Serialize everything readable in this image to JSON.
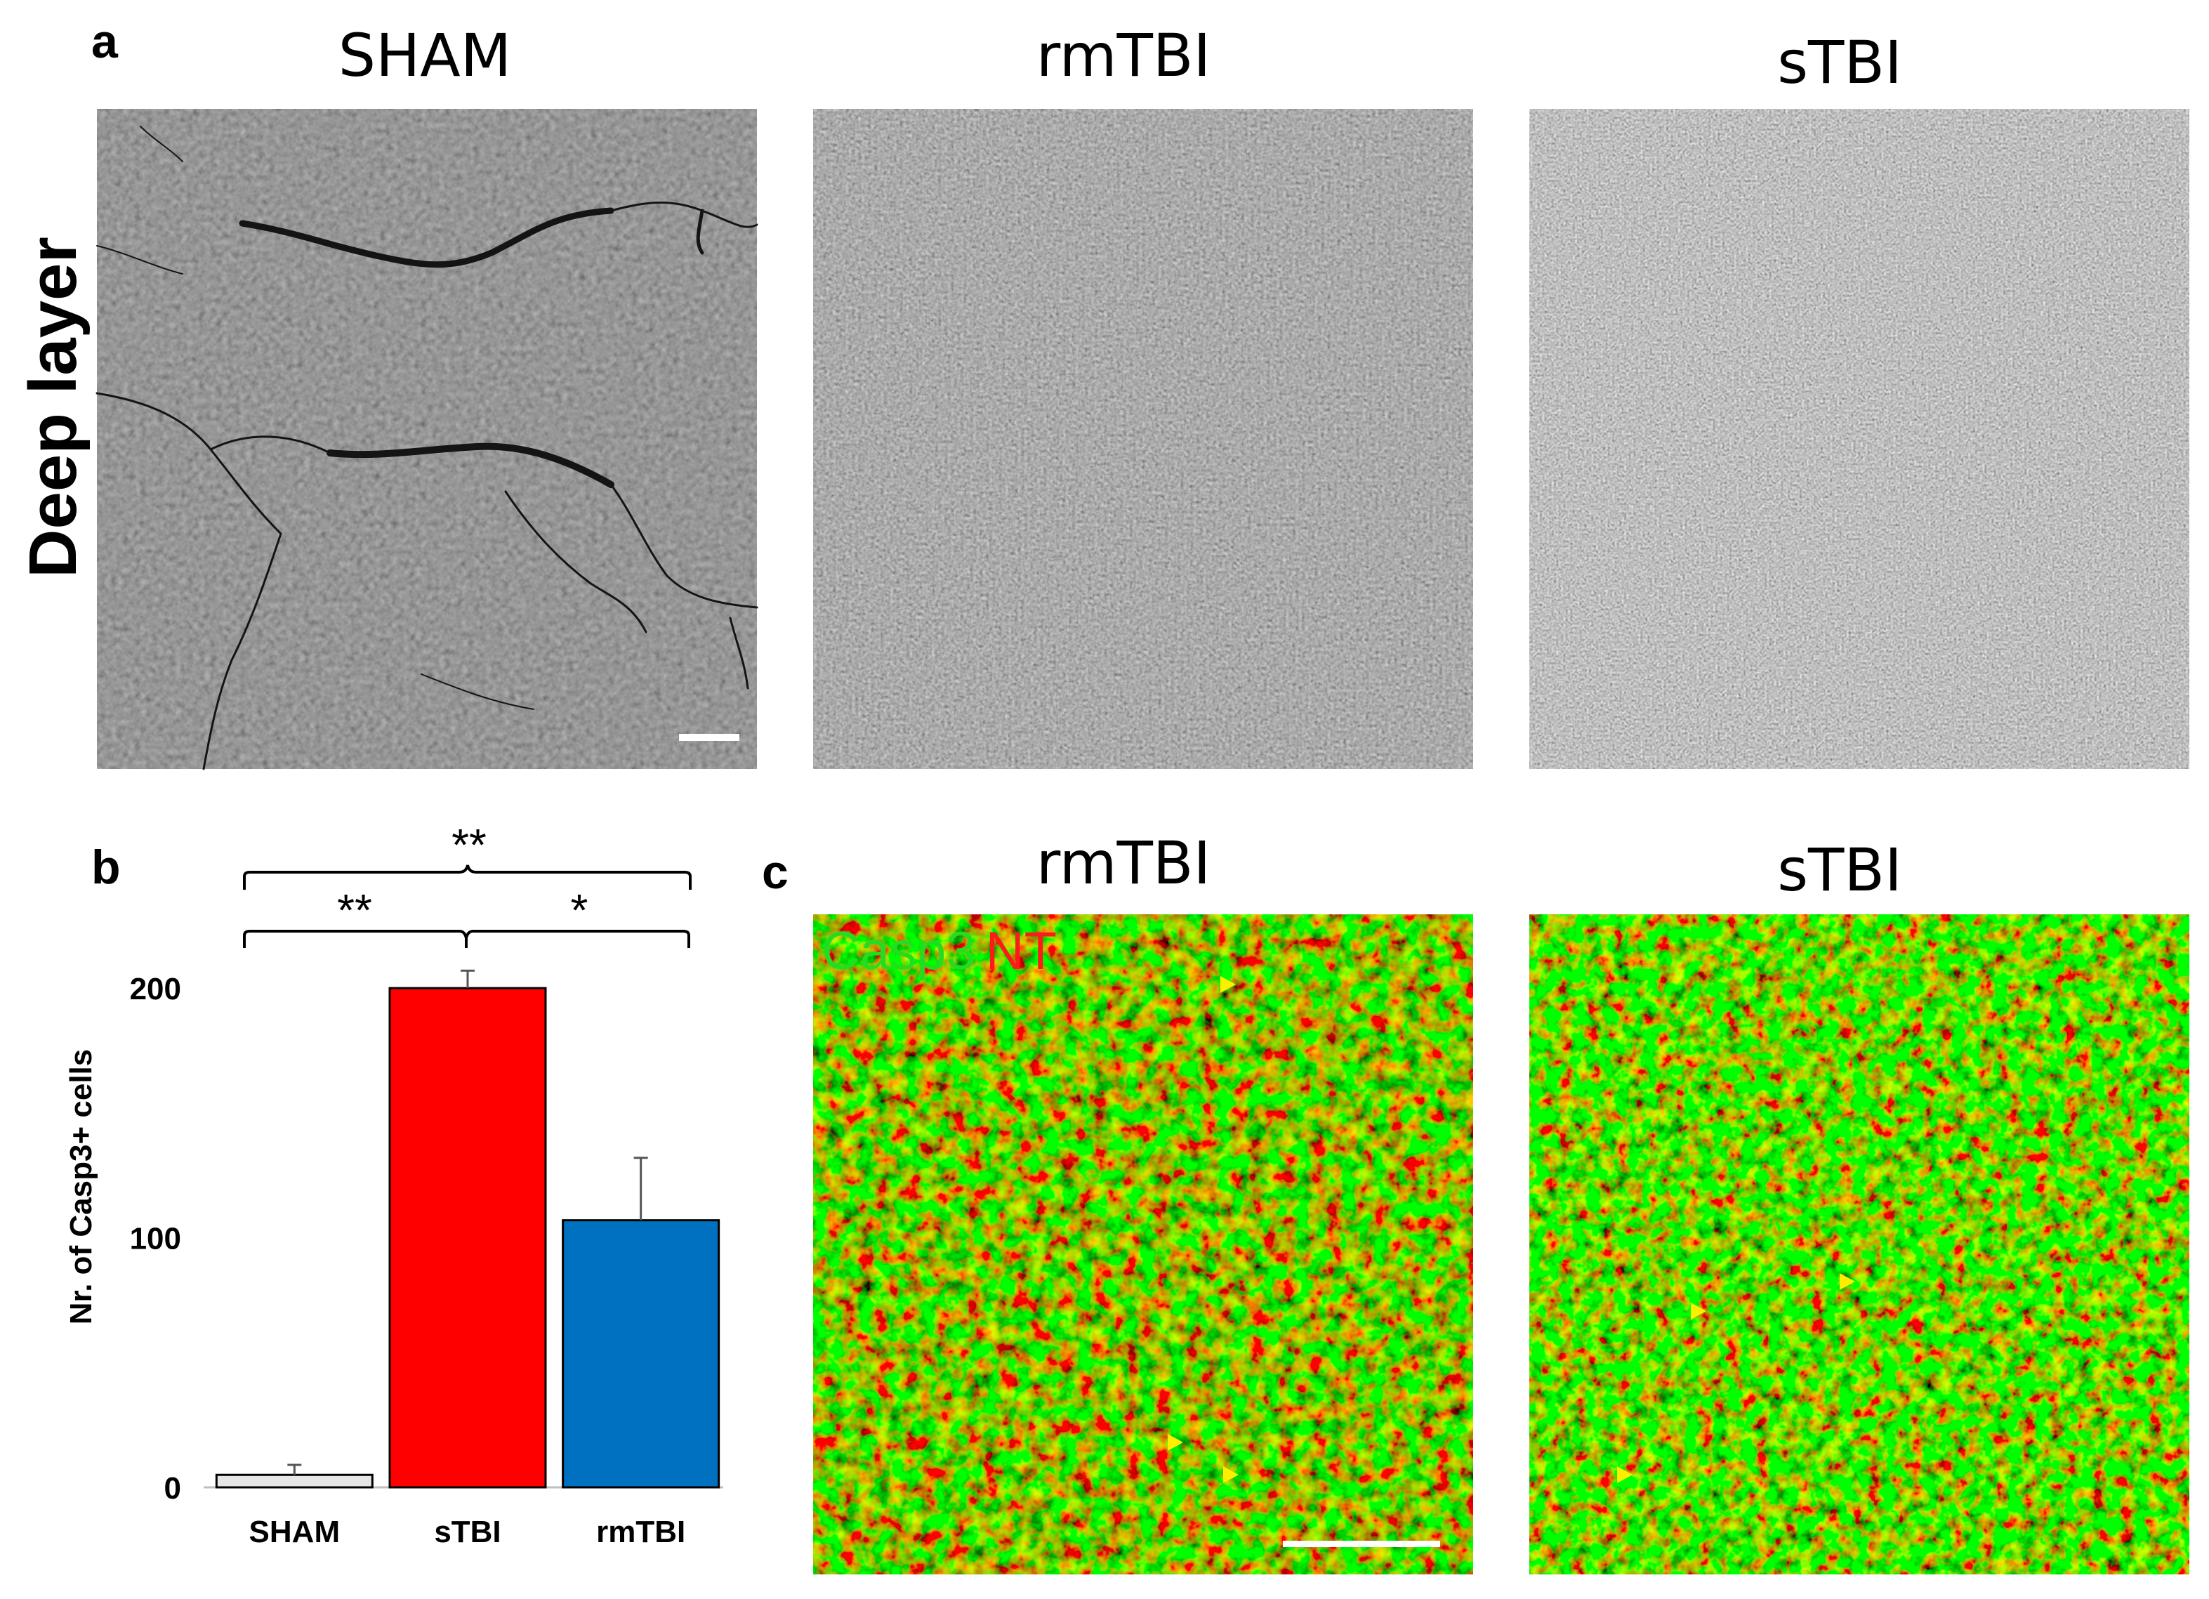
{
  "panel_a": {
    "letter": "a",
    "row_label": "Deep layer",
    "columns": [
      "SHAM",
      "rmTBI",
      "sTBI"
    ]
  },
  "panel_b": {
    "letter": "b",
    "significance": [
      {
        "label": "**",
        "from": "SHAM",
        "to": "rmTBI"
      },
      {
        "label": "**",
        "from": "SHAM",
        "to": "sTBI"
      },
      {
        "label": "*",
        "from": "sTBI",
        "to": "rmTBI"
      }
    ]
  },
  "panel_c": {
    "letter": "c",
    "columns": [
      "rmTBI",
      "sTBI"
    ],
    "stain_green": "Casp3",
    "stain_red": "NT"
  },
  "colors": {
    "sham_bar": "#e6e6e6",
    "stbi_bar": "#ff0000",
    "rmtbi_bar": "#0070c0",
    "casp3_green": "#00dd00",
    "nt_red": "#ff1a1a",
    "arrowhead_yellow": "#ffee00"
  },
  "chart_data": {
    "type": "bar",
    "categories": [
      "SHAM",
      "sTBI",
      "rmTBI"
    ],
    "values": [
      5,
      200,
      107
    ],
    "errors": [
      4,
      7,
      25
    ],
    "ylabel": "Nr. of Casp3+ cells",
    "xlabel": "",
    "yticks": [
      0,
      100,
      200
    ],
    "ylim": [
      0,
      220
    ]
  }
}
